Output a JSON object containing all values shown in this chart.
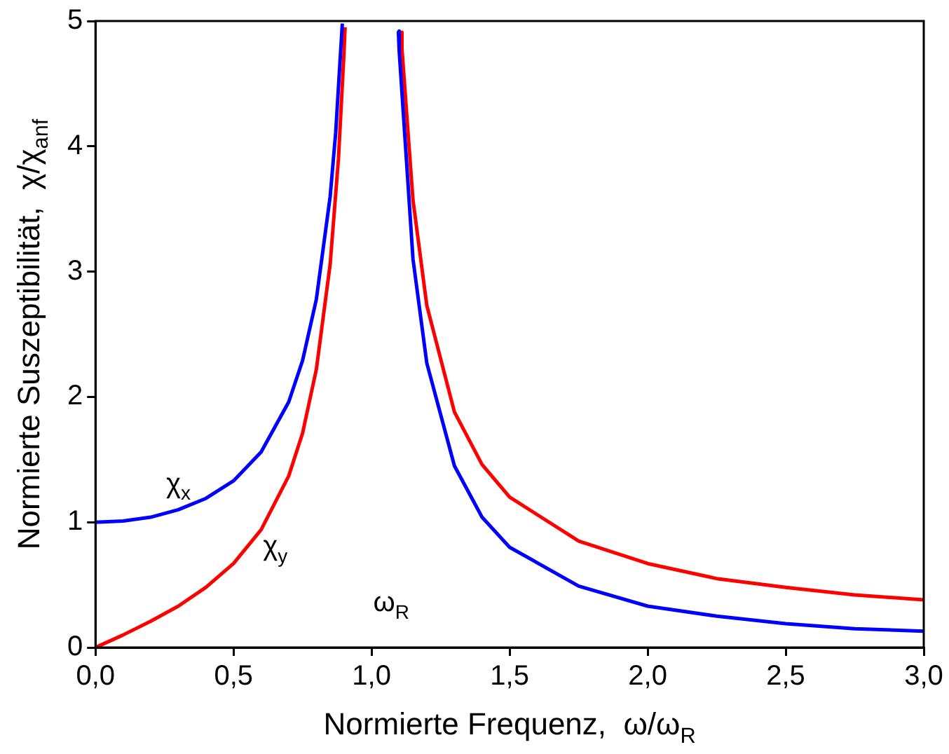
{
  "chart_data": {
    "type": "line",
    "xlabel": "Normierte Frequenz,  ω/ω$_{R}$",
    "ylabel": "Normierte Suszeptibilität,  χ/χ$_{anf}$",
    "xlim": [
      0,
      3
    ],
    "ylim": [
      0,
      5
    ],
    "xticks": [
      {
        "value": 0,
        "label": "0,0"
      },
      {
        "value": 0.5,
        "label": "0,5"
      },
      {
        "value": 1,
        "label": "1,0"
      },
      {
        "value": 1.5,
        "label": "1,5"
      },
      {
        "value": 2,
        "label": "2,0"
      },
      {
        "value": 2.5,
        "label": "2,5"
      },
      {
        "value": 3,
        "label": "3,0"
      }
    ],
    "yticks": [
      0,
      1,
      2,
      3,
      4,
      5
    ],
    "series": [
      {
        "color": "#0000ff",
        "x": [
          0,
          0.1,
          0.2,
          0.3,
          0.4,
          0.5,
          0.6,
          0.7,
          0.75,
          0.8,
          0.85,
          0.87,
          0.894,
          1,
          1.097,
          1.1,
          1.15,
          1.2,
          1.3,
          1.4,
          1.5,
          1.75,
          2,
          2.25,
          2.5,
          2.75,
          3
        ],
        "values": [
          1,
          1.01,
          1.04,
          1.1,
          1.19,
          1.33,
          1.56,
          1.96,
          2.29,
          2.78,
          3.6,
          4.11,
          4.98,
          null,
          4.92,
          4.76,
          3.1,
          2.27,
          1.45,
          1.04,
          0.8,
          0.49,
          0.33,
          0.25,
          0.19,
          0.15,
          0.13
        ]
      },
      {
        "color": "#ff0000",
        "x": [
          0,
          0.1,
          0.2,
          0.3,
          0.4,
          0.5,
          0.6,
          0.7,
          0.75,
          0.8,
          0.85,
          0.88,
          0.9,
          0.904,
          1,
          1.107,
          1.11,
          1.15,
          1.2,
          1.3,
          1.4,
          1.5,
          1.75,
          2,
          2.25,
          2.5,
          2.75,
          3
        ],
        "values": [
          0,
          0.1,
          0.21,
          0.33,
          0.48,
          0.67,
          0.94,
          1.37,
          1.71,
          2.22,
          3.06,
          3.9,
          4.74,
          4.95,
          null,
          4.91,
          4.78,
          3.57,
          2.73,
          1.88,
          1.46,
          1.2,
          0.85,
          0.67,
          0.55,
          0.48,
          0.42,
          0.38
        ]
      }
    ],
    "annotations": [
      "χ$_{x}$",
      "χ$_{y}$",
      "ω$_{R}$"
    ]
  }
}
